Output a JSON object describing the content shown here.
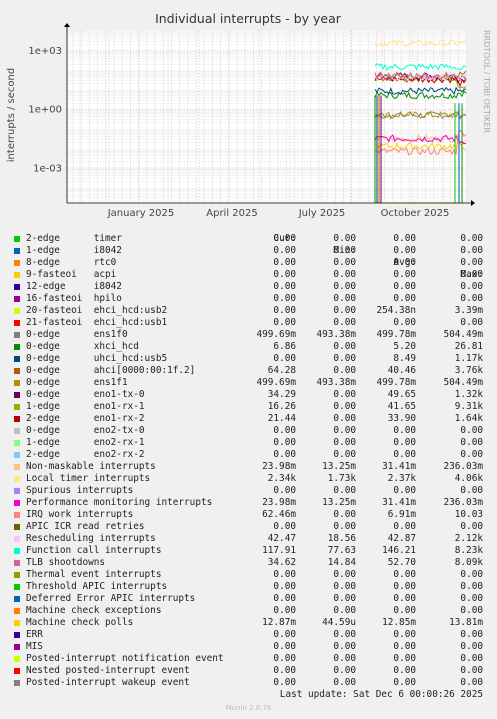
{
  "chart_data": {
    "type": "line",
    "title": "Individual interrupts - by year",
    "ylabel": "interrupts / second",
    "y_scale": "log",
    "y_ticks": [
      "1e+03",
      "1e+00",
      "1e-03"
    ],
    "x_ticks": [
      "January 2025",
      "April 2025",
      "July 2025",
      "October 2025"
    ],
    "grid": true,
    "side_label": "RRDTOOL / TOBI OETIKER",
    "columns": [
      "Cur:",
      "Min:",
      "Avg:",
      "Max:"
    ],
    "series": [
      {
        "irq": "2-edge",
        "name": "timer",
        "color": "#00cc00",
        "cur": "0.00",
        "min": "0.00",
        "avg": "0.00",
        "max": "0.00"
      },
      {
        "irq": "1-edge",
        "name": "i8042",
        "color": "#0066b3",
        "cur": "0.00",
        "min": "0.00",
        "avg": "0.00",
        "max": "0.00"
      },
      {
        "irq": "8-edge",
        "name": "rtc0",
        "color": "#ff8000",
        "cur": "0.00",
        "min": "0.00",
        "avg": "0.00",
        "max": "0.00"
      },
      {
        "irq": "9-fasteoi",
        "name": "acpi",
        "color": "#ffcc00",
        "cur": "0.00",
        "min": "0.00",
        "avg": "0.00",
        "max": "0.00"
      },
      {
        "irq": "12-edge",
        "name": "i8042",
        "color": "#330099",
        "cur": "0.00",
        "min": "0.00",
        "avg": "0.00",
        "max": "0.00"
      },
      {
        "irq": "16-fasteoi",
        "name": "hpilo",
        "color": "#990099",
        "cur": "0.00",
        "min": "0.00",
        "avg": "0.00",
        "max": "0.00"
      },
      {
        "irq": "20-fasteoi",
        "name": "ehci_hcd:usb2",
        "color": "#ccff00",
        "cur": "0.00",
        "min": "0.00",
        "avg": "254.38n",
        "max": "3.39m"
      },
      {
        "irq": "21-fasteoi",
        "name": "ehci_hcd:usb1",
        "color": "#ff0000",
        "cur": "0.00",
        "min": "0.00",
        "avg": "0.00",
        "max": "0.00"
      },
      {
        "irq": "0-edge",
        "name": "ens1f0",
        "color": "#808080",
        "cur": "499.69m",
        "min": "493.38m",
        "avg": "499.78m",
        "max": "504.49m"
      },
      {
        "irq": "0-edge",
        "name": "xhci_hcd",
        "color": "#008f00",
        "cur": "6.86",
        "min": "0.00",
        "avg": "5.20",
        "max": "26.81"
      },
      {
        "irq": "0-edge",
        "name": "uhci_hcd:usb5",
        "color": "#00487d",
        "cur": "0.00",
        "min": "0.00",
        "avg": "8.49",
        "max": "1.17k"
      },
      {
        "irq": "0-edge",
        "name": "ahci[0000:00:1f.2]",
        "color": "#b35a00",
        "cur": "64.28",
        "min": "0.00",
        "avg": "40.46",
        "max": "3.76k"
      },
      {
        "irq": "0-edge",
        "name": "ens1f1",
        "color": "#b38f00",
        "cur": "499.69m",
        "min": "493.38m",
        "avg": "499.78m",
        "max": "504.49m"
      },
      {
        "irq": "0-edge",
        "name": "eno1-tx-0",
        "color": "#6b006b",
        "cur": "34.29",
        "min": "0.00",
        "avg": "49.65",
        "max": "1.32k"
      },
      {
        "irq": "1-edge",
        "name": "eno1-rx-1",
        "color": "#8fb300",
        "cur": "16.26",
        "min": "0.00",
        "avg": "41.65",
        "max": "9.31k"
      },
      {
        "irq": "2-edge",
        "name": "eno1-rx-2",
        "color": "#b30000",
        "cur": "21.44",
        "min": "0.00",
        "avg": "33.90",
        "max": "1.64k"
      },
      {
        "irq": "0-edge",
        "name": "eno2-tx-0",
        "color": "#bebebe",
        "cur": "0.00",
        "min": "0.00",
        "avg": "0.00",
        "max": "0.00"
      },
      {
        "irq": "1-edge",
        "name": "eno2-rx-1",
        "color": "#80ff80",
        "cur": "0.00",
        "min": "0.00",
        "avg": "0.00",
        "max": "0.00"
      },
      {
        "irq": "2-edge",
        "name": "eno2-rx-2",
        "color": "#80c9ff",
        "cur": "0.00",
        "min": "0.00",
        "avg": "0.00",
        "max": "0.00"
      },
      {
        "irq": "",
        "name": "Non-maskable interrupts",
        "color": "#ffc080",
        "cur": "23.98m",
        "min": "13.25m",
        "avg": "31.41m",
        "max": "236.03m"
      },
      {
        "irq": "",
        "name": "Local timer interrupts",
        "color": "#ffe680",
        "cur": "2.34k",
        "min": "1.73k",
        "avg": "2.37k",
        "max": "4.06k"
      },
      {
        "irq": "",
        "name": "Spurious interrupts",
        "color": "#aa80ff",
        "cur": "0.00",
        "min": "0.00",
        "avg": "0.00",
        "max": "0.00"
      },
      {
        "irq": "",
        "name": "Performance monitoring interrupts",
        "color": "#ee00cc",
        "cur": "23.98m",
        "min": "13.25m",
        "avg": "31.41m",
        "max": "236.03m"
      },
      {
        "irq": "",
        "name": "IRQ work interrupts",
        "color": "#ff8080",
        "cur": "62.46m",
        "min": "0.00",
        "avg": "6.91m",
        "max": "10.03"
      },
      {
        "irq": "",
        "name": "APIC ICR read retries",
        "color": "#666600",
        "cur": "0.00",
        "min": "0.00",
        "avg": "0.00",
        "max": "0.00"
      },
      {
        "irq": "",
        "name": "Rescheduling interrupts",
        "color": "#ffbfff",
        "cur": "42.47",
        "min": "18.56",
        "avg": "42.87",
        "max": "2.12k"
      },
      {
        "irq": "",
        "name": "Function call interrupts",
        "color": "#00ffcc",
        "cur": "117.91",
        "min": "77.63",
        "avg": "146.21",
        "max": "8.23k"
      },
      {
        "irq": "",
        "name": "TLB shootdowns",
        "color": "#cc6699",
        "cur": "34.62",
        "min": "14.84",
        "avg": "52.70",
        "max": "8.09k"
      },
      {
        "irq": "",
        "name": "Thermal event interrupts",
        "color": "#999900",
        "cur": "0.00",
        "min": "0.00",
        "avg": "0.00",
        "max": "0.00"
      },
      {
        "irq": "",
        "name": "Threshold APIC interrupts",
        "color": "#00cc00",
        "cur": "0.00",
        "min": "0.00",
        "avg": "0.00",
        "max": "0.00"
      },
      {
        "irq": "",
        "name": "Deferred Error APIC interrupts",
        "color": "#0066b3",
        "cur": "0.00",
        "min": "0.00",
        "avg": "0.00",
        "max": "0.00"
      },
      {
        "irq": "",
        "name": "Machine check exceptions",
        "color": "#ff8000",
        "cur": "0.00",
        "min": "0.00",
        "avg": "0.00",
        "max": "0.00"
      },
      {
        "irq": "",
        "name": "Machine check polls",
        "color": "#ffcc00",
        "cur": "12.87m",
        "min": "44.59u",
        "avg": "12.85m",
        "max": "13.81m"
      },
      {
        "irq": "",
        "name": "ERR",
        "color": "#330099",
        "cur": "0.00",
        "min": "0.00",
        "avg": "0.00",
        "max": "0.00"
      },
      {
        "irq": "",
        "name": "MIS",
        "color": "#990099",
        "cur": "0.00",
        "min": "0.00",
        "avg": "0.00",
        "max": "0.00"
      },
      {
        "irq": "",
        "name": "Posted-interrupt notification event",
        "color": "#ccff00",
        "cur": "0.00",
        "min": "0.00",
        "avg": "0.00",
        "max": "0.00"
      },
      {
        "irq": "",
        "name": "Nested posted-interrupt event",
        "color": "#ff0000",
        "cur": "0.00",
        "min": "0.00",
        "avg": "0.00",
        "max": "0.00"
      },
      {
        "irq": "",
        "name": "Posted-interrupt wakeup event",
        "color": "#808080",
        "cur": "0.00",
        "min": "0.00",
        "avg": "0.00",
        "max": "0.00"
      }
    ]
  },
  "footer": {
    "last_update": "Last update: Sat Dec  6 00:00:26 2025",
    "generator": "Munin 2.0.76"
  }
}
